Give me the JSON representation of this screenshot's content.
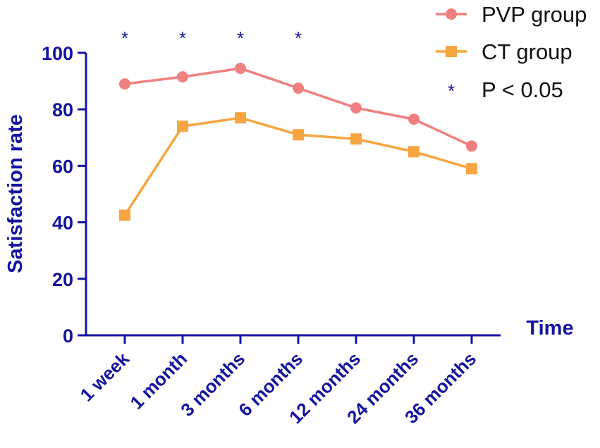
{
  "chart_data": {
    "type": "line",
    "title": "",
    "xlabel": "Time",
    "ylabel": "Satisfaction rate",
    "categories": [
      "1 week",
      "1 month",
      "3 months",
      "6 months",
      "12 months",
      "24 months",
      "36 months"
    ],
    "ylim": [
      0,
      100
    ],
    "yticks": [
      0,
      20,
      40,
      60,
      80,
      100
    ],
    "grid": false,
    "legend_position": "top-right",
    "series": [
      {
        "name": "PVP group",
        "marker": "circle",
        "color": "#f08080",
        "values": [
          89,
          91.5,
          94.5,
          87.5,
          80.5,
          76.5,
          67
        ]
      },
      {
        "name": "CT group",
        "marker": "square",
        "color": "#f7a540",
        "values": [
          42.5,
          74,
          77,
          71,
          69.5,
          65,
          59
        ]
      }
    ],
    "significance": {
      "symbol": "*",
      "label": "P < 0.05",
      "categories": [
        "1 week",
        "1 month",
        "3 months",
        "6 months"
      ]
    }
  }
}
